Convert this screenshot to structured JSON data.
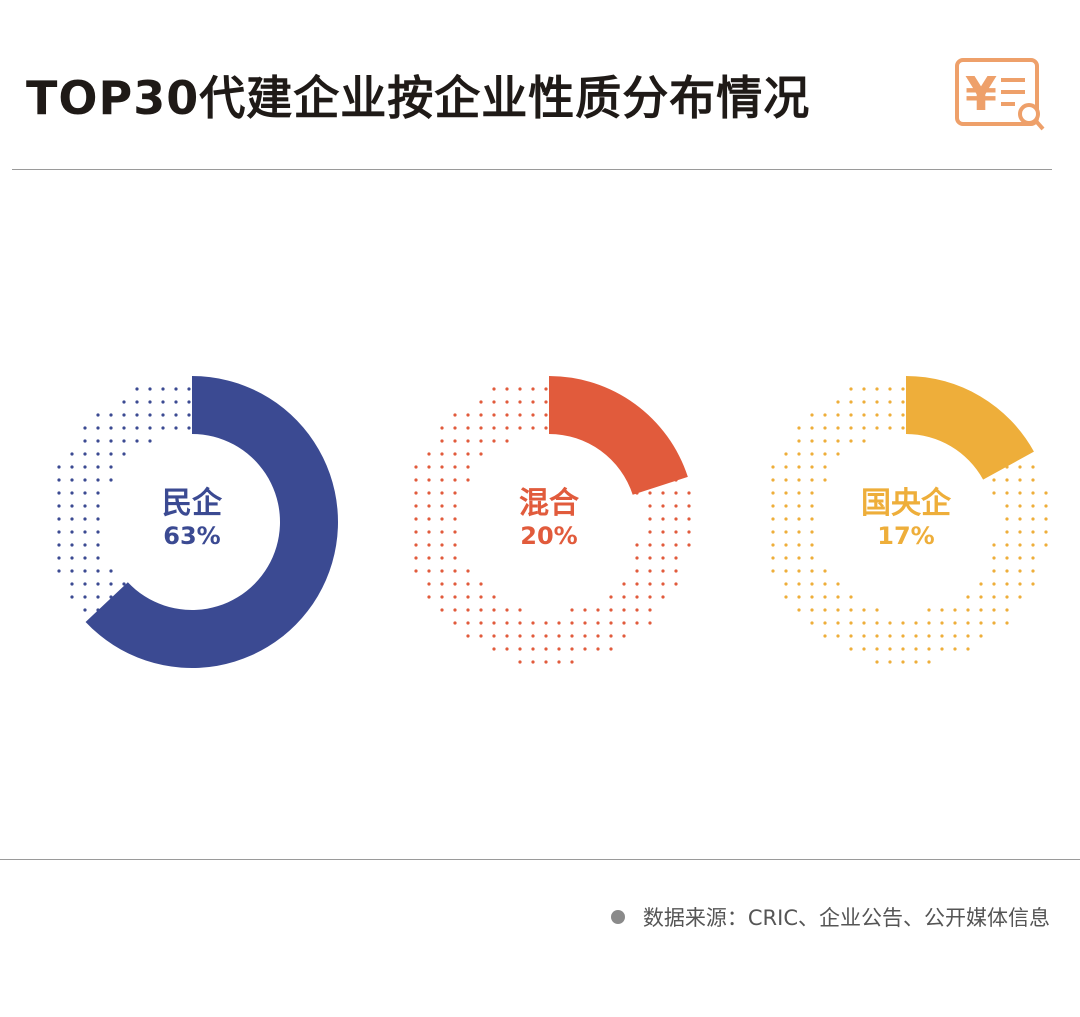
{
  "title": "TOP30代建企业按企业性质分布情况",
  "source": "数据来源：CRIC、企业公告、公开媒体信息",
  "logo_icon": "yuan-search-icon",
  "chart_data": {
    "type": "pie",
    "variant": "donut",
    "title": "TOP30代建企业按企业性质分布情况",
    "categories": [
      "民企",
      "混合",
      "国央企"
    ],
    "values": [
      63,
      20,
      17
    ],
    "labels": [
      "63%",
      "20%",
      "17%"
    ],
    "colors": [
      "#3b4a92",
      "#e15b3c",
      "#eeae3a"
    ],
    "legend": "none"
  }
}
